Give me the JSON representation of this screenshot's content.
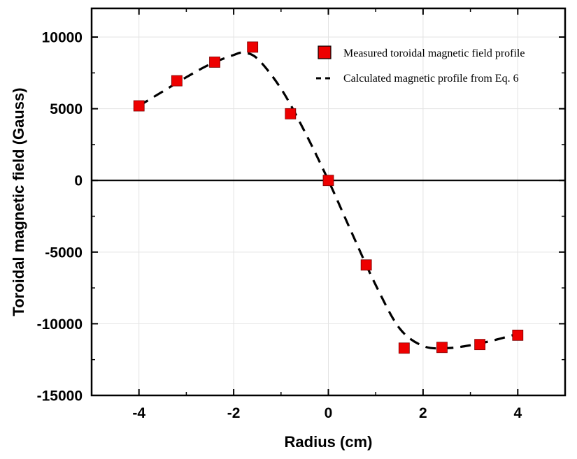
{
  "chart_data": {
    "type": "scatter",
    "title": "",
    "xlabel": "Radius (cm)",
    "ylabel": "Toroidal magnetic field (Gauss)",
    "xlim": [
      -5,
      5
    ],
    "ylim": [
      -15000,
      12000
    ],
    "x_ticks": [
      -4,
      -2,
      0,
      2,
      4
    ],
    "y_ticks": [
      -15000,
      -10000,
      -5000,
      0,
      5000,
      10000
    ],
    "grid": true,
    "zero_line": true,
    "legend_position": "top-right",
    "series": [
      {
        "name": "Measured toroidal magnetic field profile",
        "kind": "markers",
        "marker": "square",
        "color": "#ee0000",
        "x": [
          -4,
          -3.2,
          -2.4,
          -1.6,
          -0.8,
          0,
          0.8,
          1.6,
          2.4,
          3.2,
          4
        ],
        "y": [
          5200,
          6950,
          8250,
          9300,
          4650,
          0,
          -5900,
          -11700,
          -11650,
          -11450,
          -10800
        ]
      },
      {
        "name": "Calculated magnetic profile from Eq. 6",
        "kind": "line",
        "style": "dashed",
        "color": "#000000",
        "x": [
          -4,
          -3.5,
          -3.0,
          -2.5,
          -2.0,
          -1.8,
          -1.5,
          -1.0,
          -0.5,
          0,
          0.5,
          1.0,
          1.5,
          2.0,
          2.5,
          3.0,
          3.5,
          4
        ],
        "y": [
          5200,
          6200,
          7200,
          8100,
          8750,
          8900,
          8500,
          6400,
          3400,
          0,
          -3700,
          -7300,
          -10300,
          -11550,
          -11700,
          -11500,
          -11150,
          -10700
        ]
      }
    ]
  }
}
